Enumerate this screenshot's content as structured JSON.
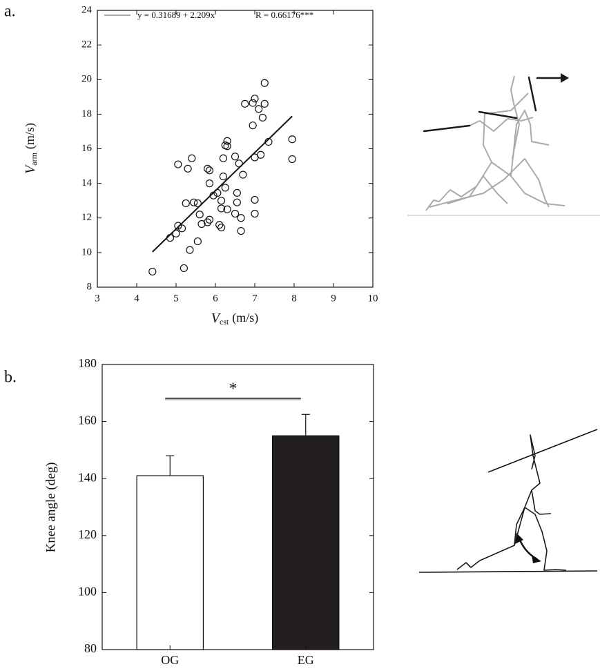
{
  "chart_data": [
    {
      "type": "scatter",
      "label": "a.",
      "x_label": {
        "symbol": "V",
        "subscript": "cst",
        "unit": "(m/s)"
      },
      "y_label": {
        "symbol": "V",
        "subscript": "arm",
        "unit": "(m/s)"
      },
      "x": [
        4.4,
        5.2,
        4.85,
        5.0,
        5.05,
        5.15,
        5.35,
        5.55,
        5.25,
        5.45,
        5.55,
        5.6,
        5.65,
        5.8,
        5.85,
        5.05,
        5.3,
        5.4,
        5.8,
        5.85,
        5.85,
        5.95,
        6.05,
        6.1,
        6.15,
        6.15,
        6.15,
        6.2,
        6.2,
        6.25,
        6.3,
        6.25,
        6.3,
        6.3,
        6.5,
        6.55,
        6.55,
        6.5,
        6.6,
        6.65,
        6.65,
        6.7,
        6.75,
        6.95,
        6.95,
        7.0,
        7.0,
        7.0,
        7.0,
        7.1,
        7.15,
        7.2,
        7.25,
        7.25,
        7.35,
        7.95,
        7.95
      ],
      "values": [
        8.9,
        9.1,
        10.85,
        11.1,
        11.55,
        11.4,
        10.15,
        10.65,
        12.85,
        12.9,
        12.85,
        12.2,
        11.65,
        11.75,
        11.9,
        15.1,
        14.85,
        15.45,
        14.85,
        14.75,
        14.0,
        13.3,
        13.45,
        11.6,
        11.45,
        12.55,
        13.0,
        14.4,
        15.45,
        13.75,
        12.5,
        16.2,
        16.45,
        16.15,
        15.55,
        13.45,
        12.9,
        12.25,
        15.15,
        11.25,
        12.0,
        14.5,
        18.6,
        18.65,
        17.35,
        18.9,
        15.5,
        13.05,
        12.25,
        18.3,
        15.65,
        17.8,
        18.6,
        19.8,
        16.4,
        16.55,
        15.4
      ],
      "color": "#111111",
      "fit": {
        "name": "y = 0.31689 + 2.209x",
        "x": [
          4.4,
          7.95
        ],
        "y": [
          10.04,
          17.88
        ]
      },
      "annotation": "R = 0.66176***",
      "xlim": [
        3,
        10
      ],
      "xticks": [
        3,
        4,
        5,
        6,
        7,
        8,
        9,
        10
      ],
      "ylim": [
        8,
        24
      ],
      "yticks": [
        8,
        10,
        12,
        14,
        16,
        18,
        20,
        22,
        24
      ]
    },
    {
      "type": "bar",
      "label": "b.",
      "y_label": "Knee angle (deg)",
      "categories": [
        "OG",
        "EG"
      ],
      "values": [
        141,
        155
      ],
      "errors": [
        7,
        7.5
      ],
      "colors": [
        "#ffffff",
        "#231f20"
      ],
      "annotation": "*",
      "ylim": [
        80,
        180
      ],
      "yticks": [
        80,
        100,
        120,
        140,
        160,
        180
      ]
    }
  ]
}
